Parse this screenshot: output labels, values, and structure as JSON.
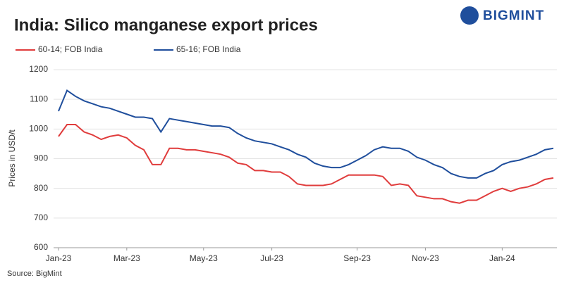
{
  "logo": "BIGMINT",
  "chart_data": {
    "type": "line",
    "title": "India: Silico manganese export prices",
    "y_label": "Prices in USD/t",
    "source": "Source: BigMint",
    "categories": [
      "Jan-23",
      null,
      null,
      null,
      null,
      null,
      null,
      null,
      "Mar-23",
      null,
      null,
      null,
      null,
      null,
      null,
      null,
      null,
      "May-23",
      null,
      null,
      null,
      null,
      null,
      null,
      null,
      "Jul-23",
      null,
      null,
      null,
      null,
      null,
      null,
      null,
      null,
      null,
      "Sep-23",
      null,
      null,
      null,
      null,
      null,
      null,
      null,
      "Nov-23",
      null,
      null,
      null,
      null,
      null,
      null,
      null,
      null,
      "Jan-24",
      null,
      null,
      null,
      null,
      null,
      null
    ],
    "series": [
      {
        "name": "60-14; FOB India",
        "color": "#e03c3c",
        "values": [
          975,
          1015,
          1015,
          990,
          980,
          965,
          975,
          980,
          970,
          945,
          930,
          880,
          880,
          935,
          935,
          930,
          930,
          925,
          920,
          915,
          905,
          885,
          880,
          860,
          860,
          855,
          855,
          840,
          815,
          810,
          810,
          810,
          815,
          830,
          845,
          845,
          845,
          845,
          840,
          810,
          815,
          810,
          775,
          770,
          765,
          765,
          755,
          750,
          760,
          760,
          775,
          790,
          800,
          790,
          800,
          805,
          815,
          830,
          835
        ]
      },
      {
        "name": "65-16; FOB India",
        "color": "#1f4e9c",
        "values": [
          1060,
          1130,
          1110,
          1095,
          1085,
          1075,
          1070,
          1060,
          1050,
          1040,
          1040,
          1035,
          990,
          1035,
          1030,
          1025,
          1020,
          1015,
          1010,
          1010,
          1005,
          985,
          970,
          960,
          955,
          950,
          940,
          930,
          915,
          905,
          885,
          875,
          870,
          870,
          880,
          895,
          910,
          930,
          940,
          935,
          935,
          925,
          905,
          895,
          880,
          870,
          850,
          840,
          835,
          835,
          850,
          860,
          880,
          890,
          895,
          905,
          915,
          930,
          935
        ]
      }
    ],
    "ylim": [
      600,
      1200
    ],
    "yticks": [
      600,
      700,
      800,
      900,
      1000,
      1100,
      1200
    ],
    "grid": true
  }
}
